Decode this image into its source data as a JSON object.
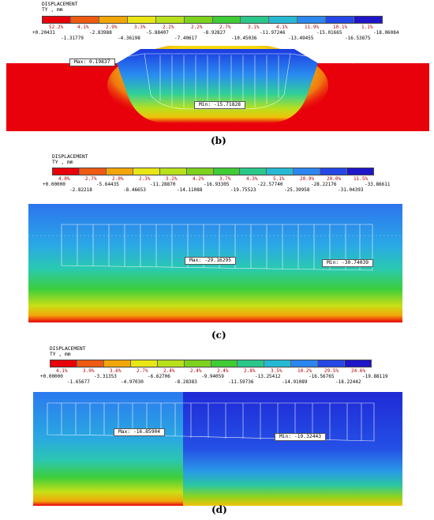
{
  "header": {
    "title": "DISPLACEMENT",
    "subtitle": "TY , mm"
  },
  "panels": [
    {
      "caption": "(b)",
      "legend": {
        "percents": [
          "52.2%",
          "4.1%",
          "2.9%",
          "3.3%",
          "2.2%",
          "2.2%",
          "2.7%",
          "3.1%",
          "4.1%",
          "11.9%",
          "10.1%",
          "1.1%"
        ],
        "colors": [
          "#e8000b",
          "#ee5a12",
          "#f2a60a",
          "#e8e615",
          "#b8e01c",
          "#7dd21e",
          "#3fcc35",
          "#2ac78a",
          "#27b9d2",
          "#2b86f0",
          "#2547e6",
          "#1f16c8"
        ],
        "ticks_top": [
          "+0.20431",
          "-2.83988",
          "-5.88407",
          "-8.92827",
          "-11.97246",
          "-15.01665",
          "-18.06084"
        ],
        "ticks_bottom": [
          "-1.31779",
          "-4.36198",
          "-7.40617",
          "-10.45036",
          "-13.49455",
          "-16.53875"
        ]
      },
      "max_label": "Max: 0.19837",
      "min_label": "Min: -15.71828"
    },
    {
      "caption": "(c)",
      "legend": {
        "percents": [
          "4.0%",
          "2.7%",
          "2.0%",
          "2.3%",
          "3.2%",
          "4.2%",
          "3.7%",
          "4.3%",
          "5.1%",
          "20.9%",
          "20.0%",
          "11.5%"
        ],
        "colors": [
          "#e8000b",
          "#ee5a12",
          "#f2a60a",
          "#e8e615",
          "#b8e01c",
          "#7dd21e",
          "#3fcc35",
          "#2ac78a",
          "#27b9d2",
          "#2b86f0",
          "#2547e6",
          "#1f16c8"
        ],
        "ticks_top": [
          "+0.00000",
          "-5.64435",
          "-11.28870",
          "-16.93305",
          "-22.57740",
          "-28.22176",
          "-33.86611"
        ],
        "ticks_bottom": [
          "-2.82218",
          "-8.46653",
          "-14.11088",
          "-19.75523",
          "-25.39958",
          "-31.04393"
        ]
      },
      "max_label": "Max: -29.16295",
      "min_label": "Min: -30.74039"
    },
    {
      "caption": "(d)",
      "legend": {
        "percents": [
          "4.1%",
          "3.0%",
          "3.6%",
          "2.7%",
          "2.4%",
          "2.4%",
          "2.4%",
          "2.8%",
          "3.5%",
          "10.2%",
          "29.5%",
          "24.6%"
        ],
        "colors": [
          "#e8000b",
          "#ee5a12",
          "#f2a60a",
          "#e8e615",
          "#b8e01c",
          "#7dd21e",
          "#3fcc35",
          "#2ac78a",
          "#27b9d2",
          "#2b86f0",
          "#2547e6",
          "#1f16c8"
        ],
        "ticks_top": [
          "+0.00000",
          "-3.31353",
          "-6.62706",
          "-9.94059",
          "-13.25412",
          "-16.56765",
          "-19.88119"
        ],
        "ticks_bottom": [
          "-1.65677",
          "-4.97030",
          "-8.28383",
          "-11.59736",
          "-14.91089",
          "-18.22442"
        ]
      },
      "max_label": "Max: -16.85904",
      "min_label": "Min: -19.32443"
    }
  ]
}
